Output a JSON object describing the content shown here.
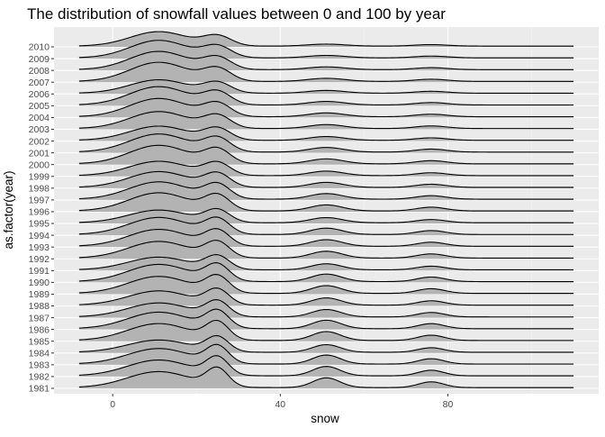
{
  "chart_data": {
    "type": "ridgeline",
    "title": "The distribution of snowfall values between 0 and 100 by year",
    "xlabel": "snow",
    "ylabel": "as.factor(year)",
    "x_ticks": [
      0,
      40,
      80
    ],
    "xlim": [
      -14,
      116
    ],
    "density_range": [
      -8,
      110
    ],
    "categories": [
      "1981",
      "1982",
      "1983",
      "1984",
      "1985",
      "1986",
      "1987",
      "1988",
      "1989",
      "1990",
      "1991",
      "1992",
      "1993",
      "1994",
      "1995",
      "1996",
      "1997",
      "1998",
      "1999",
      "2000",
      "2001",
      "2002",
      "2003",
      "2004",
      "2005",
      "2006",
      "2007",
      "2008",
      "2009",
      "2010"
    ],
    "peaks": [
      {
        "name": "low",
        "center": 11,
        "start_height": 1.35,
        "end_height": 1.6,
        "start_width": 7.5,
        "end_width": 6.8
      },
      {
        "name": "mid",
        "center": 25,
        "start_height": 1.55,
        "end_height": 1.0,
        "start_width": 2.6,
        "end_width": 3.3
      },
      {
        "name": "high",
        "center": 51,
        "start_height": 0.85,
        "end_height": 0.2,
        "start_width": 3.2,
        "end_width": 4.5
      },
      {
        "name": "top",
        "center": 76,
        "start_height": 0.5,
        "end_height": 0.15,
        "start_width": 3.0,
        "end_width": 4.0
      }
    ],
    "baseline_height": 0.07,
    "grid": true,
    "legend": "none",
    "colors": {
      "panel": "#ebebeb",
      "grid_major": "#ffffff",
      "grid_minor": "#f5f5f5",
      "fill": "#b3b3b3",
      "line": "#000000"
    }
  }
}
